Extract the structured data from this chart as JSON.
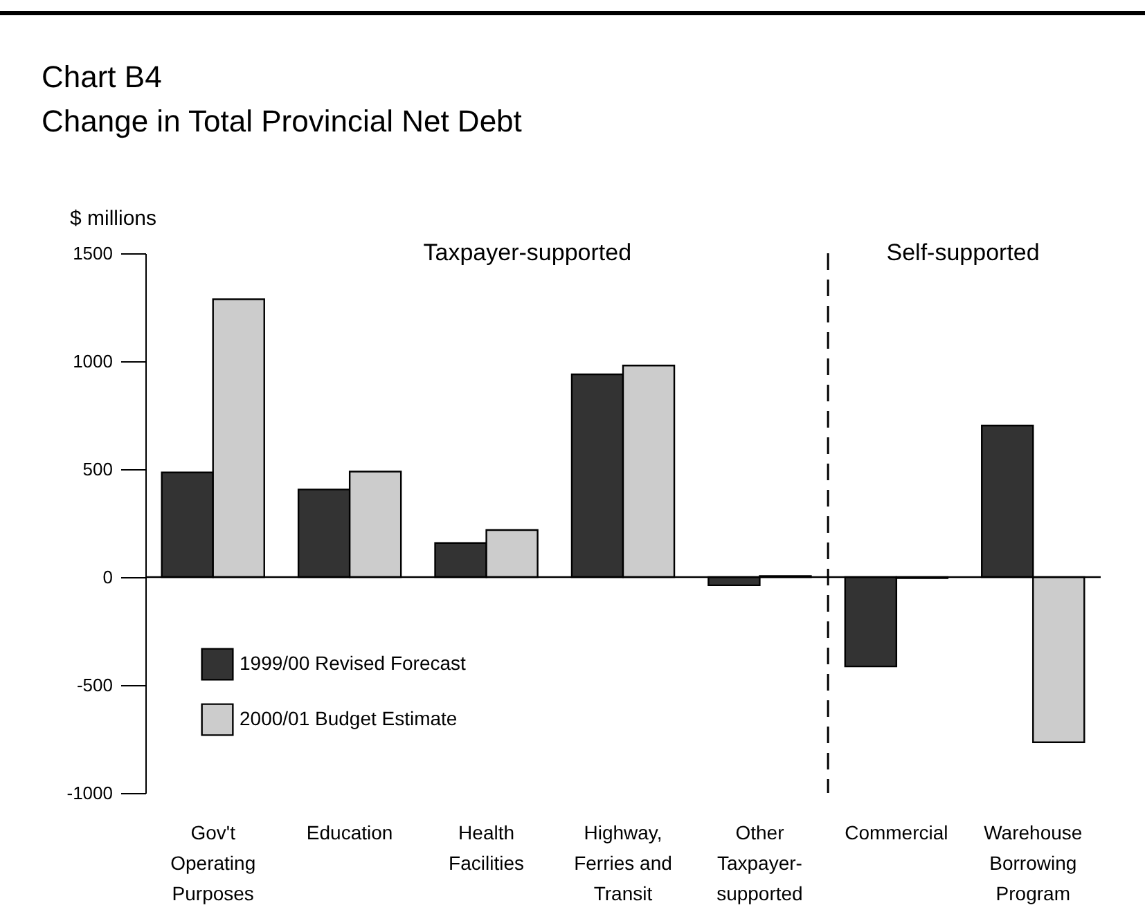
{
  "chart_data": {
    "type": "bar",
    "title": "Chart B4",
    "subtitle": "Change in Total Provincial Net Debt",
    "ylabel": "$ millions",
    "categories": [
      "Gov't Operating Purposes",
      "Education",
      "Health Facilities",
      "Highway, Ferries and Transit",
      "Other Taxpayer-supported",
      "Commercial",
      "Warehouse Borrowing Program"
    ],
    "series": [
      {
        "name": "1999/00 Revised Forecast",
        "color": "#333333",
        "values": [
          485,
          406,
          158,
          939,
          -38,
          -414,
          702
        ]
      },
      {
        "name": "2000/01 Budget Estimate",
        "color": "#cccccc",
        "values": [
          1287,
          489,
          218,
          980,
          5,
          -5,
          -765
        ]
      }
    ],
    "ylim": [
      -1000,
      1500
    ],
    "yticks": [
      -1000,
      -500,
      0,
      500,
      1000,
      1500
    ],
    "annotations": [
      "Taxpayer-supported",
      "Self-supported"
    ],
    "ref_lines": [
      {
        "axis": "x",
        "value": "Commercial",
        "line_style": "dashed",
        "color": "#000000"
      }
    ],
    "legend": "bottom left"
  }
}
